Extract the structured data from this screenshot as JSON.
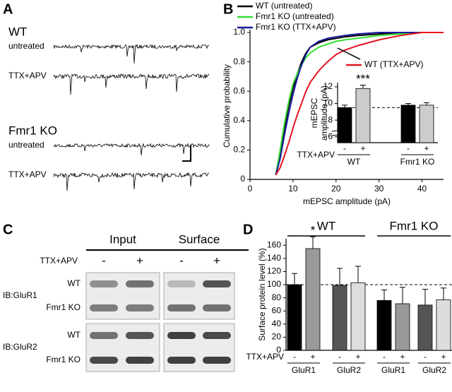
{
  "panel_a": {
    "label": "A",
    "groups": [
      {
        "title": "WT",
        "rows": [
          "untreated",
          "TTX+APV"
        ]
      },
      {
        "title": "Fmr1 KO",
        "rows": [
          "untreated",
          "TTX+APV"
        ]
      }
    ]
  },
  "panel_c": {
    "label": "C",
    "columns": [
      "Input",
      "Surface"
    ],
    "treatment": "TTX+APV",
    "lanes": [
      "-",
      "+",
      "-",
      "+"
    ],
    "blots": [
      {
        "antibody": "IB:GluR1",
        "rows": [
          "WT",
          "Fmr1 KO"
        ]
      },
      {
        "antibody": "IB:GluR2",
        "rows": [
          "WT",
          "Fmr1 KO"
        ]
      }
    ]
  },
  "chart_data": [
    {
      "panel_label": "B",
      "type": "line",
      "xlabel": "mEPSC amplitude (pA)",
      "ylabel": "Cumulative probability",
      "x": [
        6,
        7,
        8,
        9,
        10,
        11,
        12,
        13,
        14,
        16,
        18,
        20,
        22,
        25,
        30,
        35,
        40,
        45
      ],
      "series": [
        {
          "name": "WT (untreated)",
          "color": "#000000",
          "values": [
            0.03,
            0.18,
            0.35,
            0.5,
            0.62,
            0.72,
            0.8,
            0.86,
            0.9,
            0.93,
            0.95,
            0.96,
            0.97,
            0.98,
            0.99,
            1,
            1,
            1
          ]
        },
        {
          "name": "Fmr1 KO (untreated)",
          "color": "#33dd33",
          "values": [
            0.03,
            0.2,
            0.38,
            0.53,
            0.65,
            0.72,
            0.78,
            0.83,
            0.86,
            0.9,
            0.92,
            0.94,
            0.95,
            0.96,
            0.98,
            0.99,
            1,
            1
          ]
        },
        {
          "name": "Fmr1 KO (TTX+APV)",
          "color": "#1a1aa0",
          "values": [
            0.03,
            0.14,
            0.3,
            0.45,
            0.58,
            0.69,
            0.78,
            0.85,
            0.9,
            0.94,
            0.96,
            0.97,
            0.98,
            0.99,
            1,
            1,
            1,
            1
          ]
        },
        {
          "name": "WT (TTX+APV)",
          "color": "#e8141e",
          "values": [
            0.03,
            0.08,
            0.16,
            0.25,
            0.35,
            0.44,
            0.52,
            0.6,
            0.66,
            0.74,
            0.8,
            0.85,
            0.88,
            0.91,
            0.95,
            0.98,
            1,
            1
          ]
        }
      ],
      "xlim": [
        0,
        45
      ],
      "xticks": [
        0,
        10,
        20,
        30,
        40
      ],
      "ylim": [
        0,
        1
      ],
      "yticks": [
        0,
        0.2,
        0.4,
        0.6,
        0.8,
        {
          "value": 1,
          "label": "1.0"
        }
      ]
    },
    {
      "type": "bar",
      "ylabel": [
        "mEPSC",
        "amplitude (pA)"
      ],
      "treatment_label": "TTX+APV",
      "categories": [
        "-",
        "+",
        "-",
        "+"
      ],
      "groups": [
        "WT",
        "Fmr1 KO"
      ],
      "values": [
        9.5,
        11.8,
        9.8,
        9.8
      ],
      "errors": [
        0.3,
        0.4,
        0.2,
        0.3
      ],
      "colors": [
        "#000000",
        "#cccccc",
        "#000000",
        "#cccccc"
      ],
      "significance": [
        null,
        "***",
        null,
        null
      ],
      "ylim": [
        5.3,
        12.5
      ],
      "yticks": [
        6,
        8,
        10,
        12
      ],
      "reference_line": 9.5
    },
    {
      "panel_label": "D",
      "type": "bar",
      "ylabel": "Surface protein level (%)",
      "treatment_label": "TTX+APV",
      "categories": [
        "-",
        "+",
        "-",
        "+",
        "-",
        "+",
        "-",
        "+"
      ],
      "subgroups": [
        "GluR1",
        "GluR2",
        "GluR1",
        "GluR2"
      ],
      "groups": [
        "WT",
        "Fmr1 KO"
      ],
      "values": [
        100,
        155,
        99,
        103,
        76,
        71,
        69,
        77
      ],
      "errors": [
        17,
        18,
        26,
        25,
        16,
        25,
        24,
        18
      ],
      "colors": [
        "#000000",
        "#999999",
        "#555555",
        "#dddddd",
        "#000000",
        "#999999",
        "#555555",
        "#dddddd"
      ],
      "significance": [
        null,
        "*",
        null,
        null,
        null,
        null,
        null,
        null
      ],
      "ylim": [
        0,
        170
      ],
      "yticks": [
        0,
        20,
        40,
        60,
        80,
        100,
        120,
        140,
        160
      ],
      "reference_line": 100
    }
  ]
}
